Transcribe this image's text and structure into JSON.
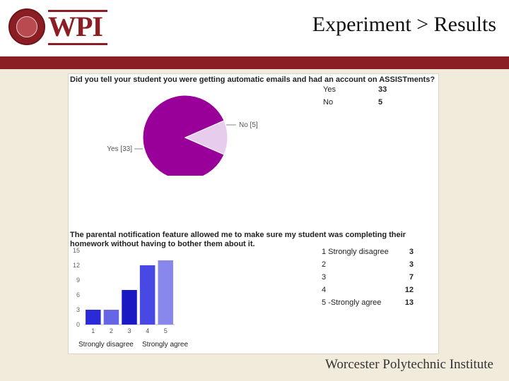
{
  "header": {
    "logo_text": "WPI",
    "title": "Experiment > Results"
  },
  "footer": {
    "institution": "Worcester Polytechnic Institute"
  },
  "colors": {
    "maroon": "#8b1d24",
    "pie_yes": "#990099",
    "pie_no": "#e8ccee",
    "bar_colors": [
      "#2a2ad8",
      "#6565e6",
      "#1a1ac4",
      "#4848e4",
      "#8888ec"
    ]
  },
  "chart_data": [
    {
      "type": "pie",
      "title": "Did you tell your student you were getting automatic emails and had an account on ASSISTments?",
      "slices": [
        {
          "label": "Yes",
          "value": 33,
          "callout": "Yes [33]"
        },
        {
          "label": "No",
          "value": 5,
          "callout": "No [5]"
        }
      ],
      "legend": [
        {
          "label": "Yes",
          "value": "33"
        },
        {
          "label": "No",
          "value": "5"
        }
      ]
    },
    {
      "type": "bar",
      "title": "The parental notification feature allowed me to make sure my student was completing their homework without having to bother them about it.",
      "categories": [
        "1",
        "2",
        "3",
        "4",
        "5"
      ],
      "values": [
        3,
        3,
        7,
        12,
        13
      ],
      "ylim": [
        0,
        15
      ],
      "yticks": [
        "0",
        "3",
        "6",
        "9",
        "12",
        "15"
      ],
      "xlabel_left": "Strongly disagree",
      "xlabel_right": "Strongly agree",
      "legend": [
        {
          "label": "1 Strongly disagree",
          "value": "3"
        },
        {
          "label": "2",
          "value": "3"
        },
        {
          "label": "3",
          "value": "7"
        },
        {
          "label": "4",
          "value": "12"
        },
        {
          "label": "5 -Strongly agree",
          "value": "13"
        }
      ]
    }
  ]
}
